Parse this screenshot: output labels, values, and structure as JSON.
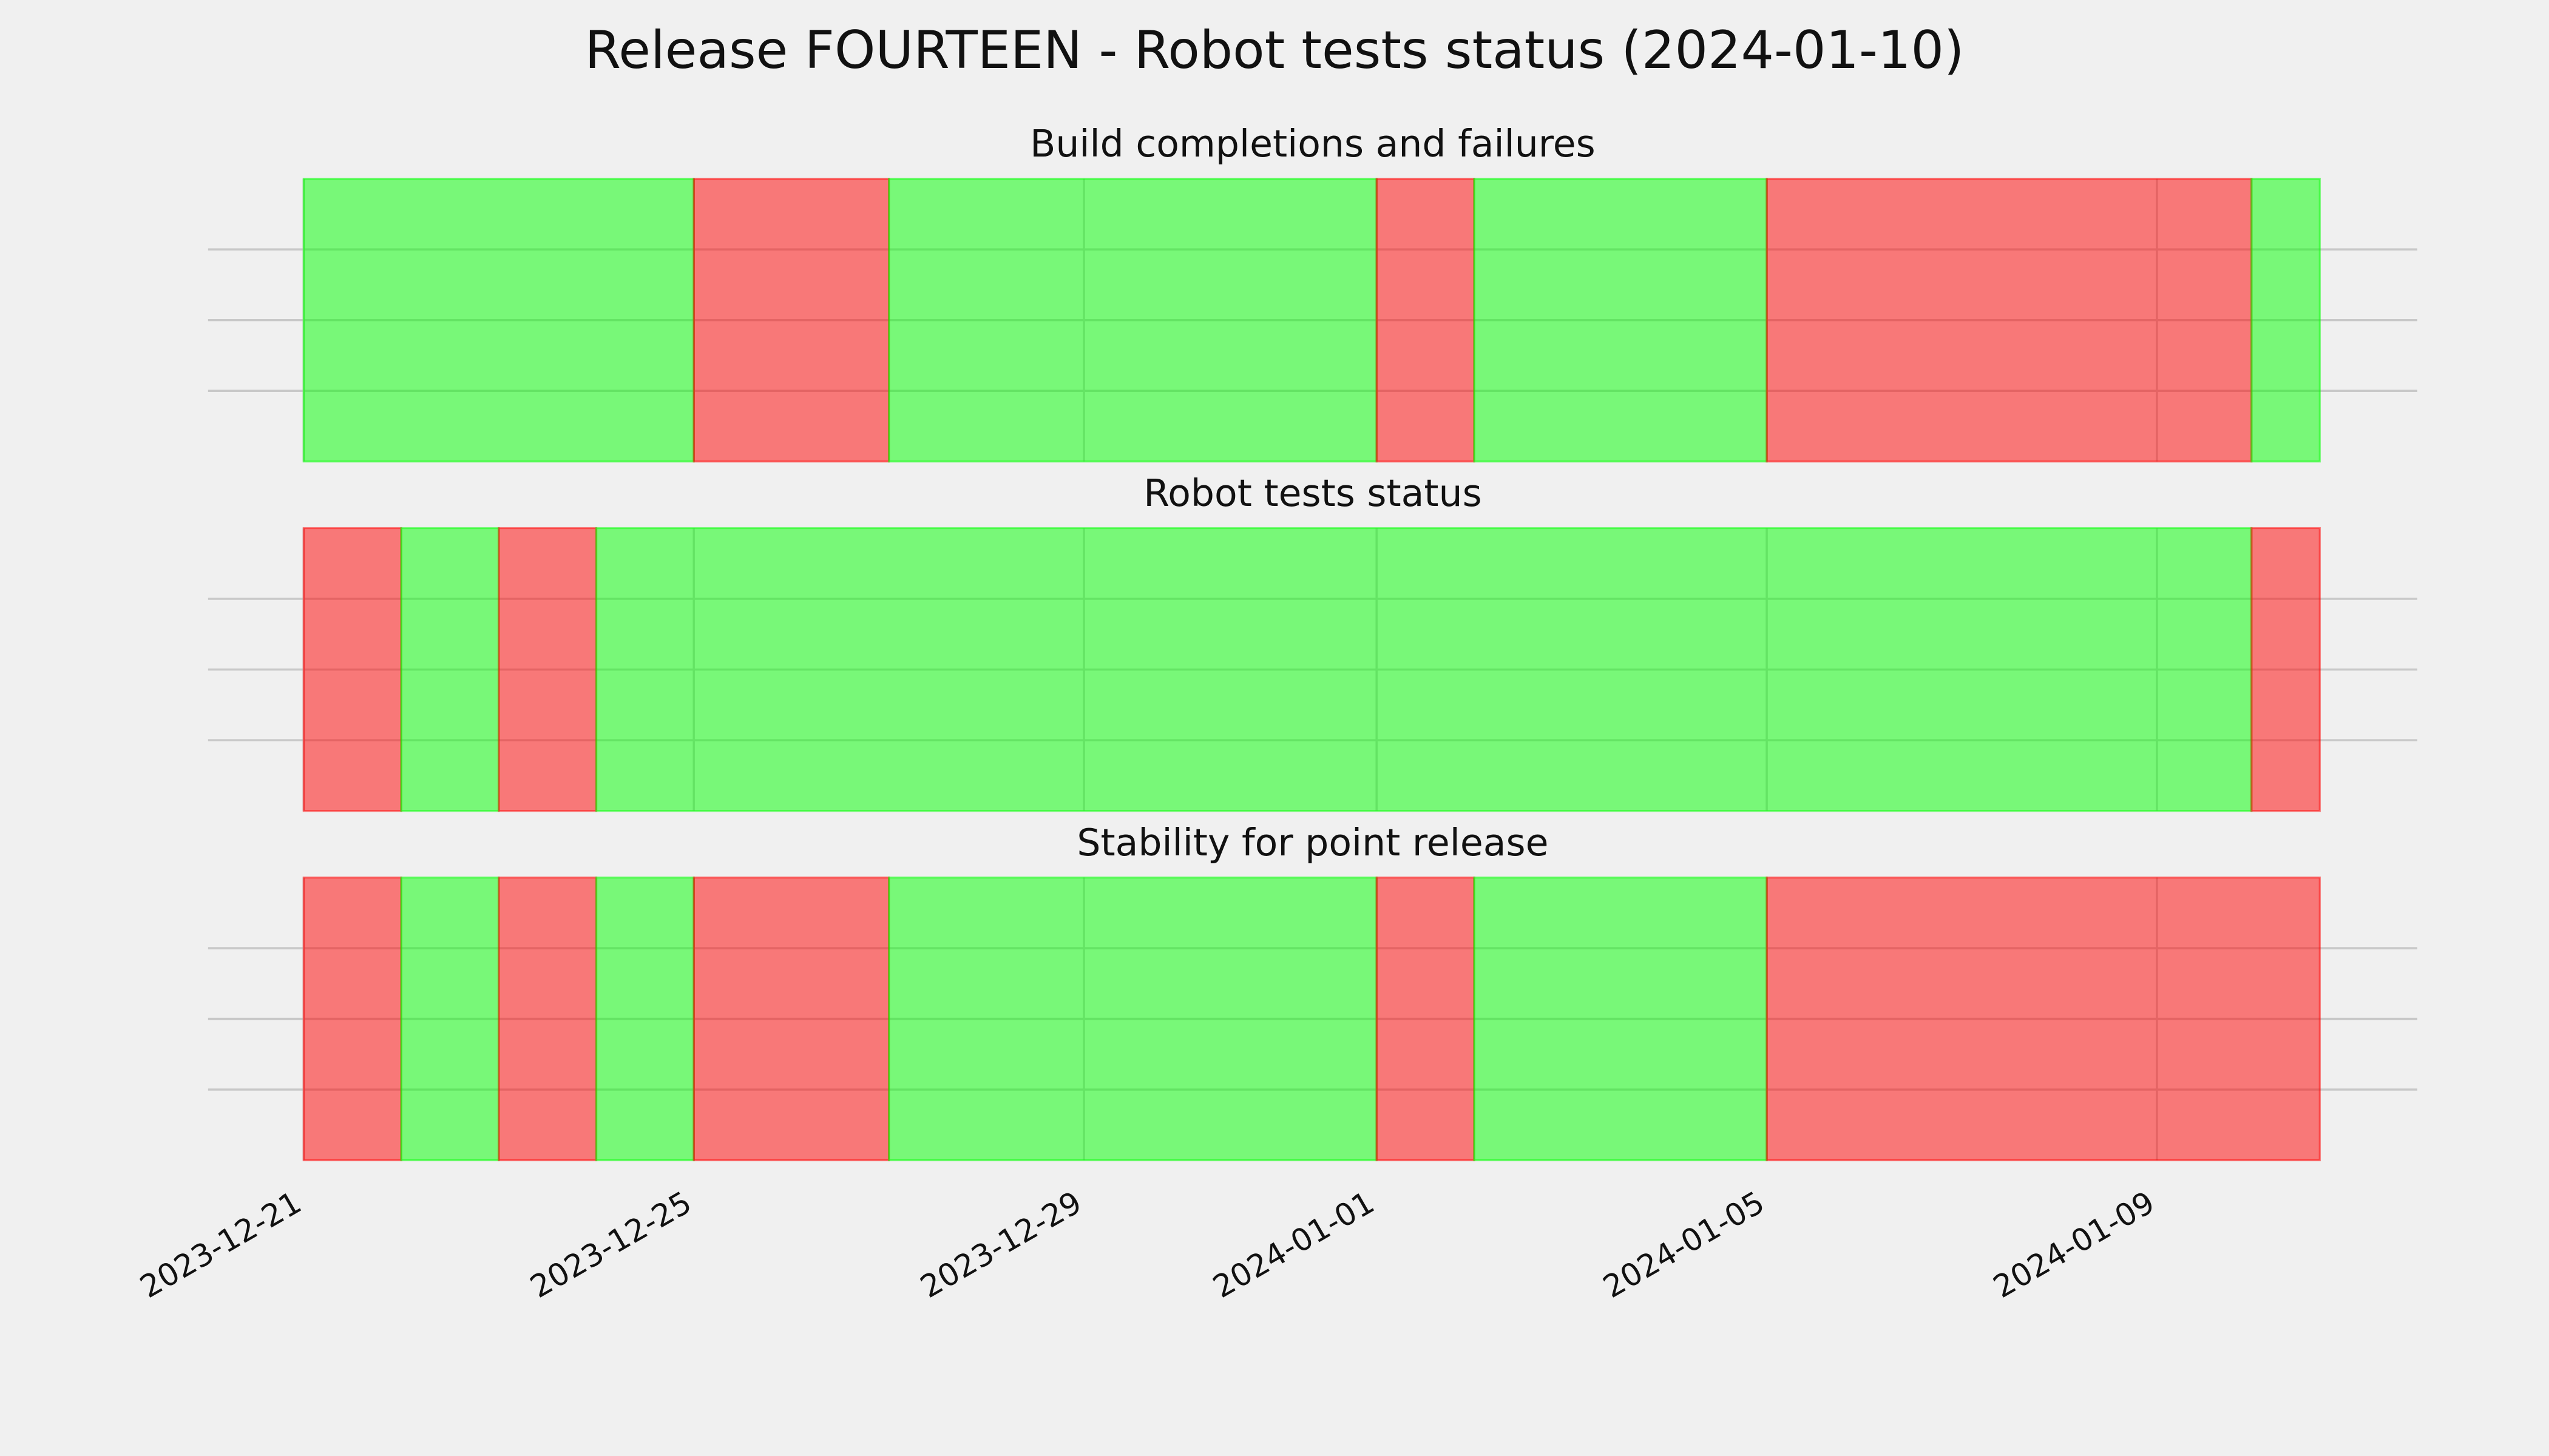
{
  "chart_data": {
    "type": "timeline",
    "title": "Release FOURTEEN - Robot tests status (2024-01-10)",
    "xlim": [
      -0.98,
      21.67
    ],
    "xticks": [
      {
        "value": 0,
        "label": "2023-12-21"
      },
      {
        "value": 4,
        "label": "2023-12-25"
      },
      {
        "value": 8,
        "label": "2023-12-29"
      },
      {
        "value": 11,
        "label": "2024-01-01"
      },
      {
        "value": 15,
        "label": "2024-01-05"
      },
      {
        "value": 19,
        "label": "2024-01-09"
      }
    ],
    "ylim": [
      0,
      1
    ],
    "yticks": [
      0.25,
      0.5,
      0.75
    ],
    "grid": true,
    "alpha": 0.5,
    "panels": [
      {
        "title": "Build completions and failures",
        "bins": [
          0,
          4,
          6,
          11,
          12,
          15,
          19.97,
          20.67
        ],
        "colors": [
          "#00ff00",
          "#ff0000",
          "#00ff00",
          "#ff0000",
          "#00ff00",
          "#ff0000",
          "#00ff00"
        ]
      },
      {
        "title": "Robot tests status",
        "bins": [
          0,
          1,
          2,
          3,
          19.97,
          20.67
        ],
        "colors": [
          "#ff0000",
          "#00ff00",
          "#ff0000",
          "#00ff00",
          "#ff0000"
        ]
      },
      {
        "title": "Stability for point release",
        "bins": [
          0,
          1,
          2,
          3,
          4,
          6,
          11,
          12,
          15,
          20.67
        ],
        "colors": [
          "#ff0000",
          "#00ff00",
          "#ff0000",
          "#00ff00",
          "#ff0000",
          "#00ff00",
          "#ff0000",
          "#00ff00",
          "#ff0000"
        ]
      }
    ]
  }
}
